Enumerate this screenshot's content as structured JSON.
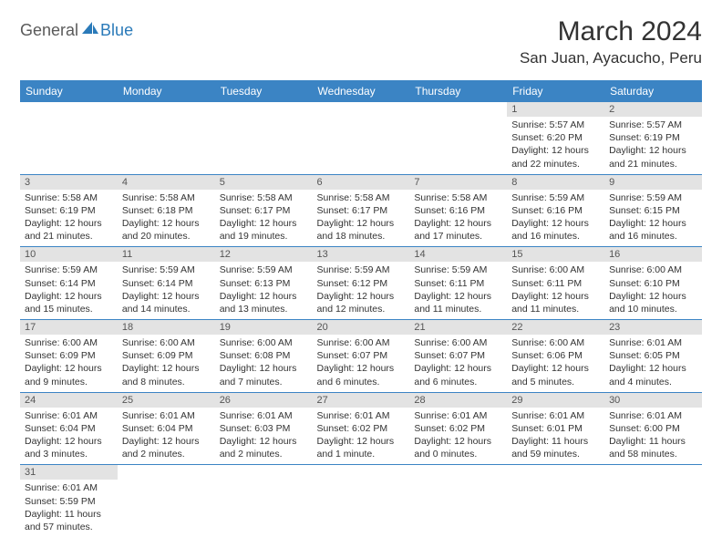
{
  "logo": {
    "general": "General",
    "blue": "Blue"
  },
  "header": {
    "title": "March 2024",
    "location": "San Juan, Ayacucho, Peru"
  },
  "daynames": [
    "Sunday",
    "Monday",
    "Tuesday",
    "Wednesday",
    "Thursday",
    "Friday",
    "Saturday"
  ],
  "colors": {
    "header_bg": "#3b84c4",
    "header_text": "#ffffff",
    "daynum_bg": "#e3e3e3",
    "cell_border": "#3b84c4",
    "logo_blue": "#2a7ab9",
    "logo_gray": "#5a5a5a"
  },
  "weeks": [
    [
      {
        "empty": true
      },
      {
        "empty": true
      },
      {
        "empty": true
      },
      {
        "empty": true
      },
      {
        "empty": true
      },
      {
        "num": "1",
        "sunrise": "Sunrise: 5:57 AM",
        "sunset": "Sunset: 6:20 PM",
        "daylight1": "Daylight: 12 hours",
        "daylight2": "and 22 minutes."
      },
      {
        "num": "2",
        "sunrise": "Sunrise: 5:57 AM",
        "sunset": "Sunset: 6:19 PM",
        "daylight1": "Daylight: 12 hours",
        "daylight2": "and 21 minutes."
      }
    ],
    [
      {
        "num": "3",
        "sunrise": "Sunrise: 5:58 AM",
        "sunset": "Sunset: 6:19 PM",
        "daylight1": "Daylight: 12 hours",
        "daylight2": "and 21 minutes."
      },
      {
        "num": "4",
        "sunrise": "Sunrise: 5:58 AM",
        "sunset": "Sunset: 6:18 PM",
        "daylight1": "Daylight: 12 hours",
        "daylight2": "and 20 minutes."
      },
      {
        "num": "5",
        "sunrise": "Sunrise: 5:58 AM",
        "sunset": "Sunset: 6:17 PM",
        "daylight1": "Daylight: 12 hours",
        "daylight2": "and 19 minutes."
      },
      {
        "num": "6",
        "sunrise": "Sunrise: 5:58 AM",
        "sunset": "Sunset: 6:17 PM",
        "daylight1": "Daylight: 12 hours",
        "daylight2": "and 18 minutes."
      },
      {
        "num": "7",
        "sunrise": "Sunrise: 5:58 AM",
        "sunset": "Sunset: 6:16 PM",
        "daylight1": "Daylight: 12 hours",
        "daylight2": "and 17 minutes."
      },
      {
        "num": "8",
        "sunrise": "Sunrise: 5:59 AM",
        "sunset": "Sunset: 6:16 PM",
        "daylight1": "Daylight: 12 hours",
        "daylight2": "and 16 minutes."
      },
      {
        "num": "9",
        "sunrise": "Sunrise: 5:59 AM",
        "sunset": "Sunset: 6:15 PM",
        "daylight1": "Daylight: 12 hours",
        "daylight2": "and 16 minutes."
      }
    ],
    [
      {
        "num": "10",
        "sunrise": "Sunrise: 5:59 AM",
        "sunset": "Sunset: 6:14 PM",
        "daylight1": "Daylight: 12 hours",
        "daylight2": "and 15 minutes."
      },
      {
        "num": "11",
        "sunrise": "Sunrise: 5:59 AM",
        "sunset": "Sunset: 6:14 PM",
        "daylight1": "Daylight: 12 hours",
        "daylight2": "and 14 minutes."
      },
      {
        "num": "12",
        "sunrise": "Sunrise: 5:59 AM",
        "sunset": "Sunset: 6:13 PM",
        "daylight1": "Daylight: 12 hours",
        "daylight2": "and 13 minutes."
      },
      {
        "num": "13",
        "sunrise": "Sunrise: 5:59 AM",
        "sunset": "Sunset: 6:12 PM",
        "daylight1": "Daylight: 12 hours",
        "daylight2": "and 12 minutes."
      },
      {
        "num": "14",
        "sunrise": "Sunrise: 5:59 AM",
        "sunset": "Sunset: 6:11 PM",
        "daylight1": "Daylight: 12 hours",
        "daylight2": "and 11 minutes."
      },
      {
        "num": "15",
        "sunrise": "Sunrise: 6:00 AM",
        "sunset": "Sunset: 6:11 PM",
        "daylight1": "Daylight: 12 hours",
        "daylight2": "and 11 minutes."
      },
      {
        "num": "16",
        "sunrise": "Sunrise: 6:00 AM",
        "sunset": "Sunset: 6:10 PM",
        "daylight1": "Daylight: 12 hours",
        "daylight2": "and 10 minutes."
      }
    ],
    [
      {
        "num": "17",
        "sunrise": "Sunrise: 6:00 AM",
        "sunset": "Sunset: 6:09 PM",
        "daylight1": "Daylight: 12 hours",
        "daylight2": "and 9 minutes."
      },
      {
        "num": "18",
        "sunrise": "Sunrise: 6:00 AM",
        "sunset": "Sunset: 6:09 PM",
        "daylight1": "Daylight: 12 hours",
        "daylight2": "and 8 minutes."
      },
      {
        "num": "19",
        "sunrise": "Sunrise: 6:00 AM",
        "sunset": "Sunset: 6:08 PM",
        "daylight1": "Daylight: 12 hours",
        "daylight2": "and 7 minutes."
      },
      {
        "num": "20",
        "sunrise": "Sunrise: 6:00 AM",
        "sunset": "Sunset: 6:07 PM",
        "daylight1": "Daylight: 12 hours",
        "daylight2": "and 6 minutes."
      },
      {
        "num": "21",
        "sunrise": "Sunrise: 6:00 AM",
        "sunset": "Sunset: 6:07 PM",
        "daylight1": "Daylight: 12 hours",
        "daylight2": "and 6 minutes."
      },
      {
        "num": "22",
        "sunrise": "Sunrise: 6:00 AM",
        "sunset": "Sunset: 6:06 PM",
        "daylight1": "Daylight: 12 hours",
        "daylight2": "and 5 minutes."
      },
      {
        "num": "23",
        "sunrise": "Sunrise: 6:01 AM",
        "sunset": "Sunset: 6:05 PM",
        "daylight1": "Daylight: 12 hours",
        "daylight2": "and 4 minutes."
      }
    ],
    [
      {
        "num": "24",
        "sunrise": "Sunrise: 6:01 AM",
        "sunset": "Sunset: 6:04 PM",
        "daylight1": "Daylight: 12 hours",
        "daylight2": "and 3 minutes."
      },
      {
        "num": "25",
        "sunrise": "Sunrise: 6:01 AM",
        "sunset": "Sunset: 6:04 PM",
        "daylight1": "Daylight: 12 hours",
        "daylight2": "and 2 minutes."
      },
      {
        "num": "26",
        "sunrise": "Sunrise: 6:01 AM",
        "sunset": "Sunset: 6:03 PM",
        "daylight1": "Daylight: 12 hours",
        "daylight2": "and 2 minutes."
      },
      {
        "num": "27",
        "sunrise": "Sunrise: 6:01 AM",
        "sunset": "Sunset: 6:02 PM",
        "daylight1": "Daylight: 12 hours",
        "daylight2": "and 1 minute."
      },
      {
        "num": "28",
        "sunrise": "Sunrise: 6:01 AM",
        "sunset": "Sunset: 6:02 PM",
        "daylight1": "Daylight: 12 hours",
        "daylight2": "and 0 minutes."
      },
      {
        "num": "29",
        "sunrise": "Sunrise: 6:01 AM",
        "sunset": "Sunset: 6:01 PM",
        "daylight1": "Daylight: 11 hours",
        "daylight2": "and 59 minutes."
      },
      {
        "num": "30",
        "sunrise": "Sunrise: 6:01 AM",
        "sunset": "Sunset: 6:00 PM",
        "daylight1": "Daylight: 11 hours",
        "daylight2": "and 58 minutes."
      }
    ],
    [
      {
        "num": "31",
        "sunrise": "Sunrise: 6:01 AM",
        "sunset": "Sunset: 5:59 PM",
        "daylight1": "Daylight: 11 hours",
        "daylight2": "and 57 minutes."
      },
      {
        "empty": true
      },
      {
        "empty": true
      },
      {
        "empty": true
      },
      {
        "empty": true
      },
      {
        "empty": true
      },
      {
        "empty": true
      }
    ]
  ]
}
